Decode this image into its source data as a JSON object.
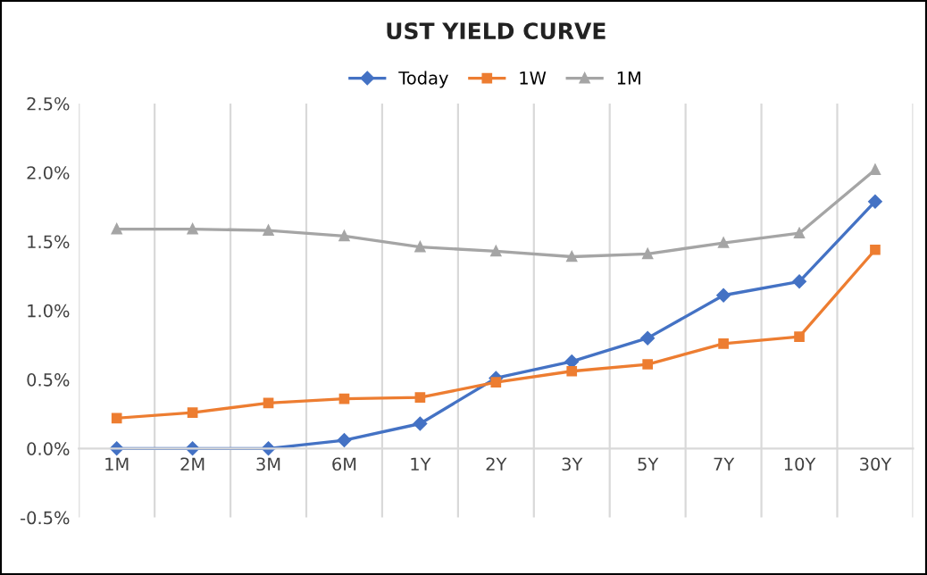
{
  "chart_data": {
    "type": "line",
    "title": "UST YIELD CURVE",
    "categories": [
      "1M",
      "2M",
      "3M",
      "6M",
      "1Y",
      "2Y",
      "3Y",
      "5Y",
      "7Y",
      "10Y",
      "30Y"
    ],
    "series": [
      {
        "name": "Today",
        "color": "#4472c4",
        "marker": "diamond",
        "values": [
          0.0,
          0.0,
          0.0,
          0.06,
          0.18,
          0.51,
          0.63,
          0.8,
          1.11,
          1.21,
          1.79
        ]
      },
      {
        "name": "1W",
        "color": "#ed7d31",
        "marker": "square",
        "values": [
          0.22,
          0.26,
          0.33,
          0.36,
          0.37,
          0.48,
          0.56,
          0.61,
          0.76,
          0.81,
          1.44
        ]
      },
      {
        "name": "1M",
        "color": "#a5a5a5",
        "marker": "triangle",
        "values": [
          1.59,
          1.59,
          1.58,
          1.54,
          1.46,
          1.43,
          1.39,
          1.41,
          1.49,
          1.56,
          2.02
        ]
      }
    ],
    "ylim": [
      -0.5,
      2.5
    ],
    "yticks": [
      {
        "value": -0.5,
        "label": "-0.5%"
      },
      {
        "value": 0,
        "label": "0.0%"
      },
      {
        "value": 0.5,
        "label": "0.5%"
      },
      {
        "value": 1.0,
        "label": "1.0%"
      },
      {
        "value": 1.5,
        "label": "1.5%"
      },
      {
        "value": 2.0,
        "label": "2.0%"
      },
      {
        "value": 2.5,
        "label": "2.5%"
      }
    ],
    "grid": "x",
    "legend": "top",
    "line_style": "solid"
  }
}
